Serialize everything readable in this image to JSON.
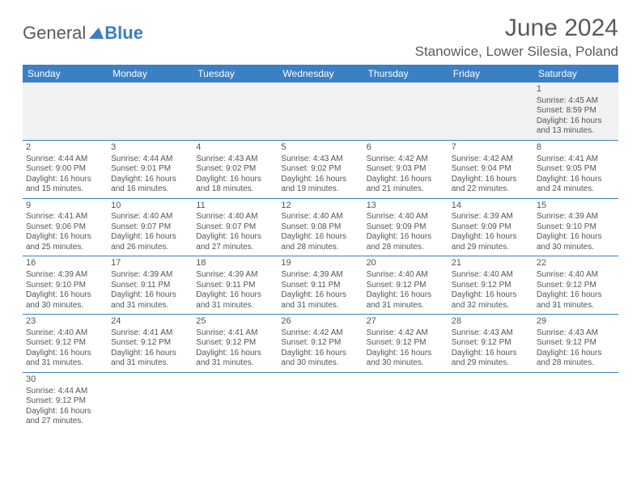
{
  "logo": {
    "part1": "General",
    "part2": "Blue"
  },
  "title": "June 2024",
  "location": "Stanowice, Lower Silesia, Poland",
  "colors": {
    "header_bg": "#3b7fc4",
    "header_text": "#ffffff",
    "text": "#555555",
    "divider": "#3b7fc4",
    "blank_bg": "#f1f1f1"
  },
  "calendar": {
    "day_labels": [
      "Sunday",
      "Monday",
      "Tuesday",
      "Wednesday",
      "Thursday",
      "Friday",
      "Saturday"
    ],
    "cell_fontsize": 10,
    "header_fontsize": 12,
    "weeks": [
      [
        null,
        null,
        null,
        null,
        null,
        null,
        {
          "n": "1",
          "sr": "Sunrise: 4:45 AM",
          "ss": "Sunset: 8:59 PM",
          "d1": "Daylight: 16 hours",
          "d2": "and 13 minutes."
        }
      ],
      [
        {
          "n": "2",
          "sr": "Sunrise: 4:44 AM",
          "ss": "Sunset: 9:00 PM",
          "d1": "Daylight: 16 hours",
          "d2": "and 15 minutes."
        },
        {
          "n": "3",
          "sr": "Sunrise: 4:44 AM",
          "ss": "Sunset: 9:01 PM",
          "d1": "Daylight: 16 hours",
          "d2": "and 16 minutes."
        },
        {
          "n": "4",
          "sr": "Sunrise: 4:43 AM",
          "ss": "Sunset: 9:02 PM",
          "d1": "Daylight: 16 hours",
          "d2": "and 18 minutes."
        },
        {
          "n": "5",
          "sr": "Sunrise: 4:43 AM",
          "ss": "Sunset: 9:02 PM",
          "d1": "Daylight: 16 hours",
          "d2": "and 19 minutes."
        },
        {
          "n": "6",
          "sr": "Sunrise: 4:42 AM",
          "ss": "Sunset: 9:03 PM",
          "d1": "Daylight: 16 hours",
          "d2": "and 21 minutes."
        },
        {
          "n": "7",
          "sr": "Sunrise: 4:42 AM",
          "ss": "Sunset: 9:04 PM",
          "d1": "Daylight: 16 hours",
          "d2": "and 22 minutes."
        },
        {
          "n": "8",
          "sr": "Sunrise: 4:41 AM",
          "ss": "Sunset: 9:05 PM",
          "d1": "Daylight: 16 hours",
          "d2": "and 24 minutes."
        }
      ],
      [
        {
          "n": "9",
          "sr": "Sunrise: 4:41 AM",
          "ss": "Sunset: 9:06 PM",
          "d1": "Daylight: 16 hours",
          "d2": "and 25 minutes."
        },
        {
          "n": "10",
          "sr": "Sunrise: 4:40 AM",
          "ss": "Sunset: 9:07 PM",
          "d1": "Daylight: 16 hours",
          "d2": "and 26 minutes."
        },
        {
          "n": "11",
          "sr": "Sunrise: 4:40 AM",
          "ss": "Sunset: 9:07 PM",
          "d1": "Daylight: 16 hours",
          "d2": "and 27 minutes."
        },
        {
          "n": "12",
          "sr": "Sunrise: 4:40 AM",
          "ss": "Sunset: 9:08 PM",
          "d1": "Daylight: 16 hours",
          "d2": "and 28 minutes."
        },
        {
          "n": "13",
          "sr": "Sunrise: 4:40 AM",
          "ss": "Sunset: 9:09 PM",
          "d1": "Daylight: 16 hours",
          "d2": "and 28 minutes."
        },
        {
          "n": "14",
          "sr": "Sunrise: 4:39 AM",
          "ss": "Sunset: 9:09 PM",
          "d1": "Daylight: 16 hours",
          "d2": "and 29 minutes."
        },
        {
          "n": "15",
          "sr": "Sunrise: 4:39 AM",
          "ss": "Sunset: 9:10 PM",
          "d1": "Daylight: 16 hours",
          "d2": "and 30 minutes."
        }
      ],
      [
        {
          "n": "16",
          "sr": "Sunrise: 4:39 AM",
          "ss": "Sunset: 9:10 PM",
          "d1": "Daylight: 16 hours",
          "d2": "and 30 minutes."
        },
        {
          "n": "17",
          "sr": "Sunrise: 4:39 AM",
          "ss": "Sunset: 9:11 PM",
          "d1": "Daylight: 16 hours",
          "d2": "and 31 minutes."
        },
        {
          "n": "18",
          "sr": "Sunrise: 4:39 AM",
          "ss": "Sunset: 9:11 PM",
          "d1": "Daylight: 16 hours",
          "d2": "and 31 minutes."
        },
        {
          "n": "19",
          "sr": "Sunrise: 4:39 AM",
          "ss": "Sunset: 9:11 PM",
          "d1": "Daylight: 16 hours",
          "d2": "and 31 minutes."
        },
        {
          "n": "20",
          "sr": "Sunrise: 4:40 AM",
          "ss": "Sunset: 9:12 PM",
          "d1": "Daylight: 16 hours",
          "d2": "and 31 minutes."
        },
        {
          "n": "21",
          "sr": "Sunrise: 4:40 AM",
          "ss": "Sunset: 9:12 PM",
          "d1": "Daylight: 16 hours",
          "d2": "and 32 minutes."
        },
        {
          "n": "22",
          "sr": "Sunrise: 4:40 AM",
          "ss": "Sunset: 9:12 PM",
          "d1": "Daylight: 16 hours",
          "d2": "and 31 minutes."
        }
      ],
      [
        {
          "n": "23",
          "sr": "Sunrise: 4:40 AM",
          "ss": "Sunset: 9:12 PM",
          "d1": "Daylight: 16 hours",
          "d2": "and 31 minutes."
        },
        {
          "n": "24",
          "sr": "Sunrise: 4:41 AM",
          "ss": "Sunset: 9:12 PM",
          "d1": "Daylight: 16 hours",
          "d2": "and 31 minutes."
        },
        {
          "n": "25",
          "sr": "Sunrise: 4:41 AM",
          "ss": "Sunset: 9:12 PM",
          "d1": "Daylight: 16 hours",
          "d2": "and 31 minutes."
        },
        {
          "n": "26",
          "sr": "Sunrise: 4:42 AM",
          "ss": "Sunset: 9:12 PM",
          "d1": "Daylight: 16 hours",
          "d2": "and 30 minutes."
        },
        {
          "n": "27",
          "sr": "Sunrise: 4:42 AM",
          "ss": "Sunset: 9:12 PM",
          "d1": "Daylight: 16 hours",
          "d2": "and 30 minutes."
        },
        {
          "n": "28",
          "sr": "Sunrise: 4:43 AM",
          "ss": "Sunset: 9:12 PM",
          "d1": "Daylight: 16 hours",
          "d2": "and 29 minutes."
        },
        {
          "n": "29",
          "sr": "Sunrise: 4:43 AM",
          "ss": "Sunset: 9:12 PM",
          "d1": "Daylight: 16 hours",
          "d2": "and 28 minutes."
        }
      ],
      [
        {
          "n": "30",
          "sr": "Sunrise: 4:44 AM",
          "ss": "Sunset: 9:12 PM",
          "d1": "Daylight: 16 hours",
          "d2": "and 27 minutes."
        },
        null,
        null,
        null,
        null,
        null,
        null
      ]
    ]
  }
}
